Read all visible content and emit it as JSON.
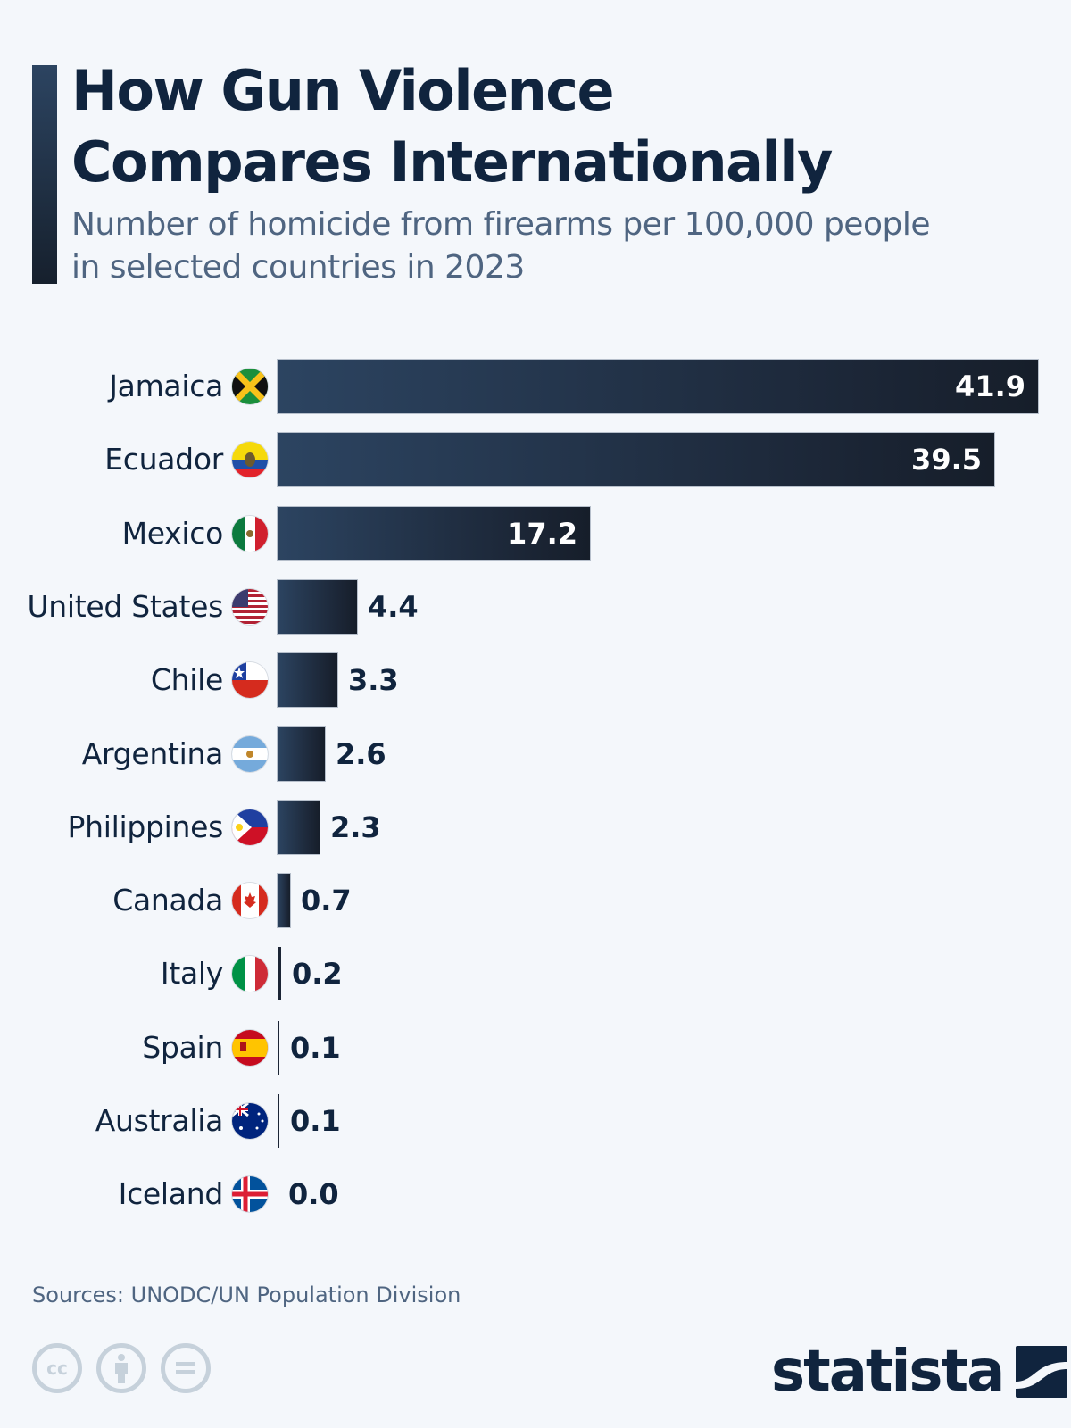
{
  "header": {
    "title_line1": "How Gun Violence",
    "title_line2": "Compares Internationally",
    "subtitle_line1": "Number of homicide from firearms per 100,000 people",
    "subtitle_line2": "in selected countries in 2023"
  },
  "footer": {
    "source": "Sources: UNODC/UN Population Division",
    "license_icons": [
      "cc-icon",
      "attribution-icon",
      "no-derivatives-icon"
    ],
    "brand": "statista"
  },
  "colors": {
    "background": "#f4f7fb",
    "bar_start": "#2c4461",
    "bar_end": "#161e2a",
    "title": "#10243e",
    "subtitle": "#4f6581",
    "license_icons": "#c6d1db"
  },
  "chart_data": {
    "type": "bar",
    "orientation": "horizontal",
    "title": "How Gun Violence Compares Internationally",
    "subtitle": "Number of homicide from firearms per 100,000 people in selected countries in 2023",
    "xlabel": "",
    "ylabel": "",
    "categories": [
      "Jamaica",
      "Ecuador",
      "Mexico",
      "United States",
      "Chile",
      "Argentina",
      "Philippines",
      "Canada",
      "Italy",
      "Spain",
      "Australia",
      "Iceland"
    ],
    "values": [
      41.9,
      39.5,
      17.2,
      4.4,
      3.3,
      2.6,
      2.3,
      0.7,
      0.2,
      0.1,
      0.1,
      0.0
    ],
    "value_labels": [
      "41.9",
      "39.5",
      "17.2",
      "4.4",
      "3.3",
      "2.6",
      "2.3",
      "0.7",
      "0.2",
      "0.1",
      "0.1",
      "0.0"
    ],
    "xlim": [
      0,
      41.9
    ],
    "grid": false,
    "legend": null,
    "source": "UNODC/UN Population Division"
  }
}
